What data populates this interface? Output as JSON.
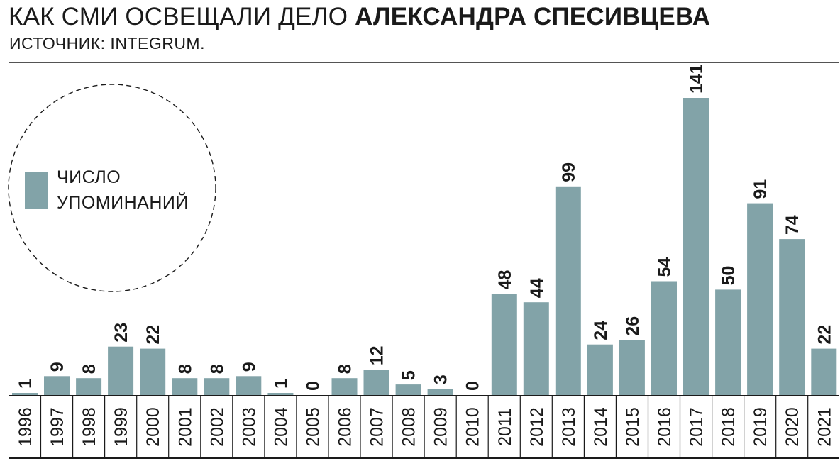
{
  "header": {
    "title_regular": "КАК СМИ ОСВЕЩАЛИ ДЕЛО",
    "title_bold": "АЛЕКСАНДРА СПЕСИВЦЕВА",
    "source": "ИСТОЧНИК: INTEGRUM."
  },
  "legend": {
    "line1": "ЧИСЛО",
    "line2": "УПОМИНАНИЙ",
    "color": "#82a3a8"
  },
  "chart_data": {
    "type": "bar",
    "categories": [
      "1996",
      "1997",
      "1998",
      "1999",
      "2000",
      "2001",
      "2002",
      "2003",
      "2004",
      "2005",
      "2006",
      "2007",
      "2008",
      "2009",
      "2010",
      "2011",
      "2012",
      "2013",
      "2014",
      "2015",
      "2016",
      "2017",
      "2018",
      "2019",
      "2020",
      "2021"
    ],
    "series": [
      {
        "name": "ЧИСЛО УПОМИНАНИЙ",
        "values": [
          1,
          9,
          8,
          23,
          22,
          8,
          8,
          9,
          1,
          0,
          8,
          12,
          5,
          3,
          0,
          48,
          44,
          99,
          24,
          26,
          54,
          141,
          50,
          91,
          74,
          22
        ]
      }
    ],
    "title": "КАК СМИ ОСВЕЩАЛИ ДЕЛО АЛЕКСАНДРА СПЕСИВЦЕВА",
    "subtitle": "ИСТОЧНИК: INTEGRUM.",
    "ylim": [
      0,
      141
    ],
    "grid": false,
    "legend_position": "top-left",
    "bar_color": "#82a3a8"
  }
}
